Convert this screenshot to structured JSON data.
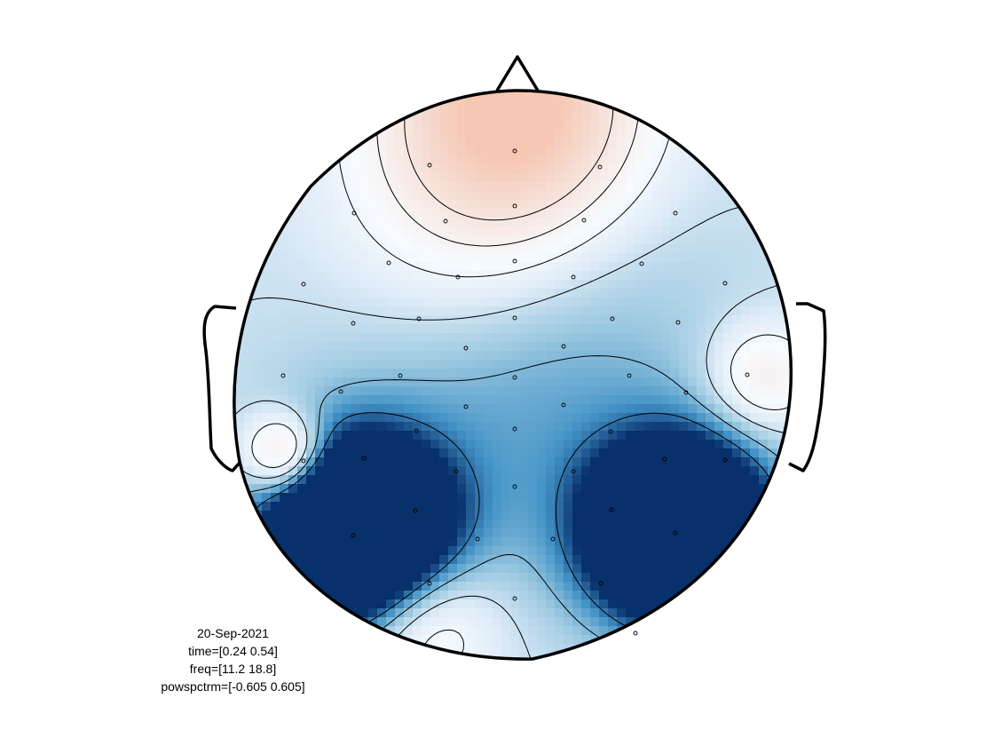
{
  "chart_data": {
    "type": "heatmap",
    "subtype": "topoplot",
    "colormap": "diverging-blue-white-red",
    "colors": {
      "negative_max": "#08306b",
      "neutral": "#f7fbff",
      "positive_max": "#f6c7b3",
      "outline": "#000000",
      "contour": "#000000"
    },
    "clim": [
      -0.605,
      0.605
    ],
    "electrode_count": 50,
    "info": {
      "date": "20-Sep-2021",
      "time": "time=[0.24 0.54]",
      "freq": "freq=[11.2 18.8]",
      "param": "powspctrm=[-0.605 0.605]"
    }
  }
}
